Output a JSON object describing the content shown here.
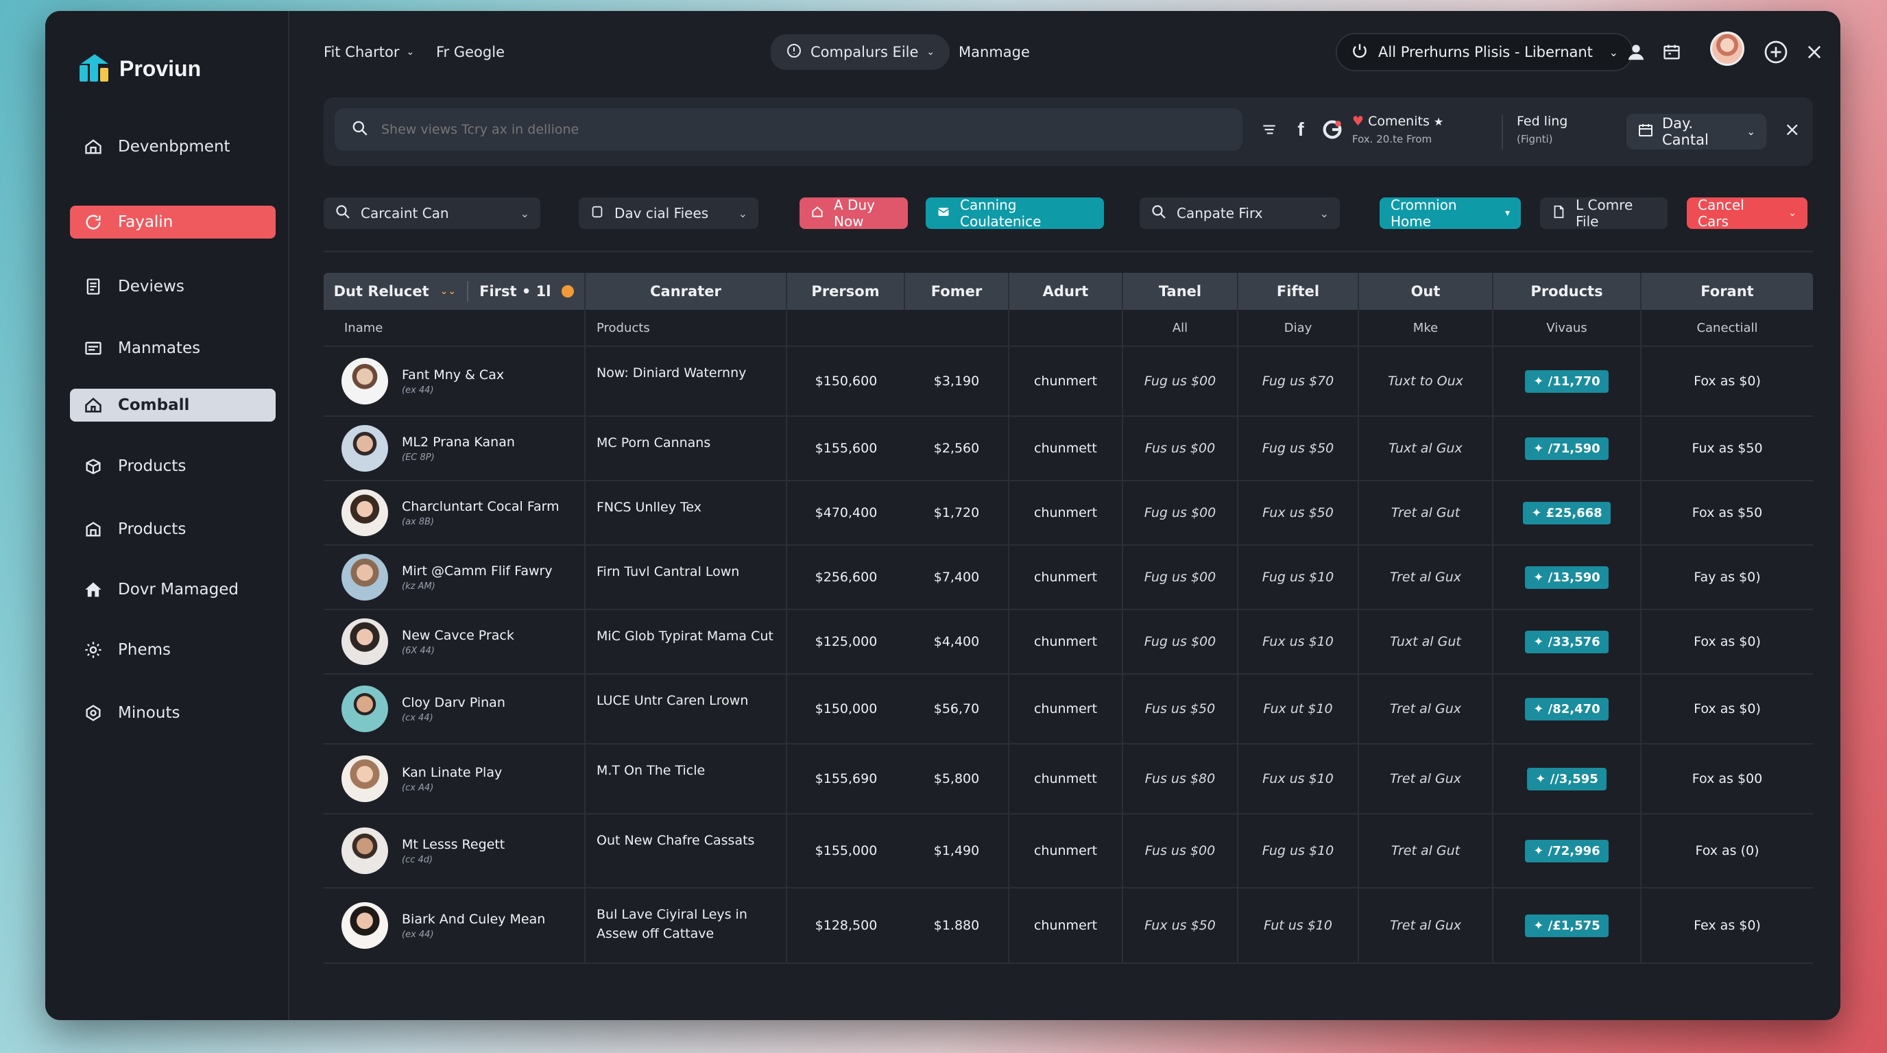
{
  "brand": {
    "name": "Proviun"
  },
  "sidebar": {
    "items": [
      {
        "label": "Devenbpment",
        "icon": "home-icon"
      },
      {
        "label": "Fayalin",
        "icon": "refresh-icon",
        "state": "active-red"
      },
      {
        "label": "Deviews",
        "icon": "document-icon"
      },
      {
        "label": "Manmates",
        "icon": "list-icon"
      },
      {
        "label": "Comball",
        "icon": "home-icon",
        "state": "active-light"
      },
      {
        "label": "Products",
        "icon": "box-icon"
      },
      {
        "label": "Products",
        "icon": "box-icon"
      },
      {
        "label": "Dovr Mamaged",
        "icon": "house-icon"
      },
      {
        "label": "Phems",
        "icon": "gear-icon"
      },
      {
        "label": "Minouts",
        "icon": "clock-icon"
      }
    ]
  },
  "topbar": {
    "fit_charter": "Fit Chartor",
    "google": "Fr Geogle",
    "compalurs": "Compalurs Eile",
    "manmage": "Manmage",
    "selector": "All Prerhurns Plisis - Libernant"
  },
  "searchbar": {
    "placeholder": "Shew views Tcry ax in dellione",
    "comments_title": "Comenits",
    "comments_sub": "Fox. 20.te From",
    "feeding_title": "Fed ling",
    "feeding_sub": "(Fignti)",
    "day_select": "Day. Cantal"
  },
  "filters": {
    "f1": "Carcaint Can",
    "f2": "Dav cial Fiees",
    "f3": "A Duy Now",
    "f4": "Canning Coulatenice",
    "f5": "Canpate Firx",
    "f6": "Cromnion Home",
    "f7": "L Comre File",
    "f8": "Cancel Cars"
  },
  "table": {
    "headers": {
      "h1a": "Dut Relucet",
      "h1b": "First • 1l",
      "h2": "Canrater",
      "h3": "Prersom",
      "h4": "Fomer",
      "h5": "Adurt",
      "h6": "Tanel",
      "h7": "Fiftel",
      "h8": "Out",
      "h9": "Products",
      "h10": "Forant"
    },
    "subheaders": {
      "s1": "Iname",
      "s2": "Products",
      "s6": "All",
      "s7": "Diay",
      "s8": "Mke",
      "s9": "Vivaus",
      "s10": "Canectiall"
    },
    "rows": [
      {
        "name": "Fant Mny & Cax",
        "sub": "(ex 44)",
        "product": "Now: Diniard Waternny",
        "person": "$150,600",
        "fomer": "$3,190",
        "adurt": "chunmert",
        "tanel": "Fug us $00",
        "fiftel": "Fug us $70",
        "out": "Tuxt to Oux",
        "badge": "✦ /11,770",
        "forant": "Fox as $0)"
      },
      {
        "name": "ML2 Prana Kanan",
        "sub": "(EC 8P)",
        "product": "MC Porn Cannans",
        "person": "$155,600",
        "fomer": "$2,560",
        "adurt": "chunmett",
        "tanel": "Fus us $00",
        "fiftel": "Fug us $50",
        "out": "Tuxt al Gux",
        "badge": "✦ /71,590",
        "forant": "Fux as $50"
      },
      {
        "name": "Charcluntart Cocal Farm",
        "sub": "(ax 8B)",
        "product": "FNCS Unlley Tex",
        "person": "$470,400",
        "fomer": "$1,720",
        "adurt": "chunmert",
        "tanel": "Fug us $00",
        "fiftel": "Fux us $50",
        "out": "Tret al Gut",
        "badge": "✦ £25,668",
        "forant": "Fox as $50"
      },
      {
        "name": "Mirt @Camm Flif Fawry",
        "sub": "(kz AM)",
        "product": "Firn Tuvl Cantral Lown",
        "person": "$256,600",
        "fomer": "$7,400",
        "adurt": "chunmert",
        "tanel": "Fug us $00",
        "fiftel": "Fug us $10",
        "out": "Tret al Gux",
        "badge": "✦ /13,590",
        "forant": "Fay as $0)"
      },
      {
        "name": "New Cavce Prack",
        "sub": "(6X 44)",
        "product": "MiC Glob Typirat Mama Cut",
        "person": "$125,000",
        "fomer": "$4,400",
        "adurt": "chunmert",
        "tanel": "Fug us $00",
        "fiftel": "Fux us $10",
        "out": "Tuxt al Gut",
        "badge": "✦ /33,576",
        "forant": "Fox as $0)"
      },
      {
        "name": "Cloy Darv Pinan",
        "sub": "(cx 44)",
        "product": "LUCE Untr Caren Lrown",
        "person": "$150,000",
        "fomer": "$56,70",
        "adurt": "chunmert",
        "tanel": "Fus us $50",
        "fiftel": "Fux ut $10",
        "out": "Tret al Gux",
        "badge": "✦ /82,470",
        "forant": "Fox as $0)"
      },
      {
        "name": "Kan Linate Play",
        "sub": "(cx A4)",
        "product": "M.T On The Ticle",
        "person": "$155,690",
        "fomer": "$5,800",
        "adurt": "chunmett",
        "tanel": "Fus us $80",
        "fiftel": "Fux us $10",
        "out": "Tret al Gux",
        "badge": "✦ //3,595",
        "forant": "Fox as $00"
      },
      {
        "name": "Mt Lesss Regett",
        "sub": "(cc 4d)",
        "product": "Out New Chafre Cassats",
        "person": "$155,000",
        "fomer": "$1,490",
        "adurt": "chunmert",
        "tanel": "Fus us $00",
        "fiftel": "Fug us $10",
        "out": "Tret al Gut",
        "badge": "✦ /72,996",
        "forant": "Fox as (0)"
      },
      {
        "name": "Biark And Culey Mean",
        "sub": "(ex 44)",
        "product": "Bul Lave Ciyiral Leys in Assew off Cattave",
        "person": "$128,500",
        "fomer": "$1.880",
        "adurt": "chunmert",
        "tanel": "Fux us $50",
        "fiftel": "Fut us $10",
        "out": "Tret al Gux",
        "badge": "✦ /£1,575",
        "forant": "Fex as $0)"
      }
    ]
  }
}
